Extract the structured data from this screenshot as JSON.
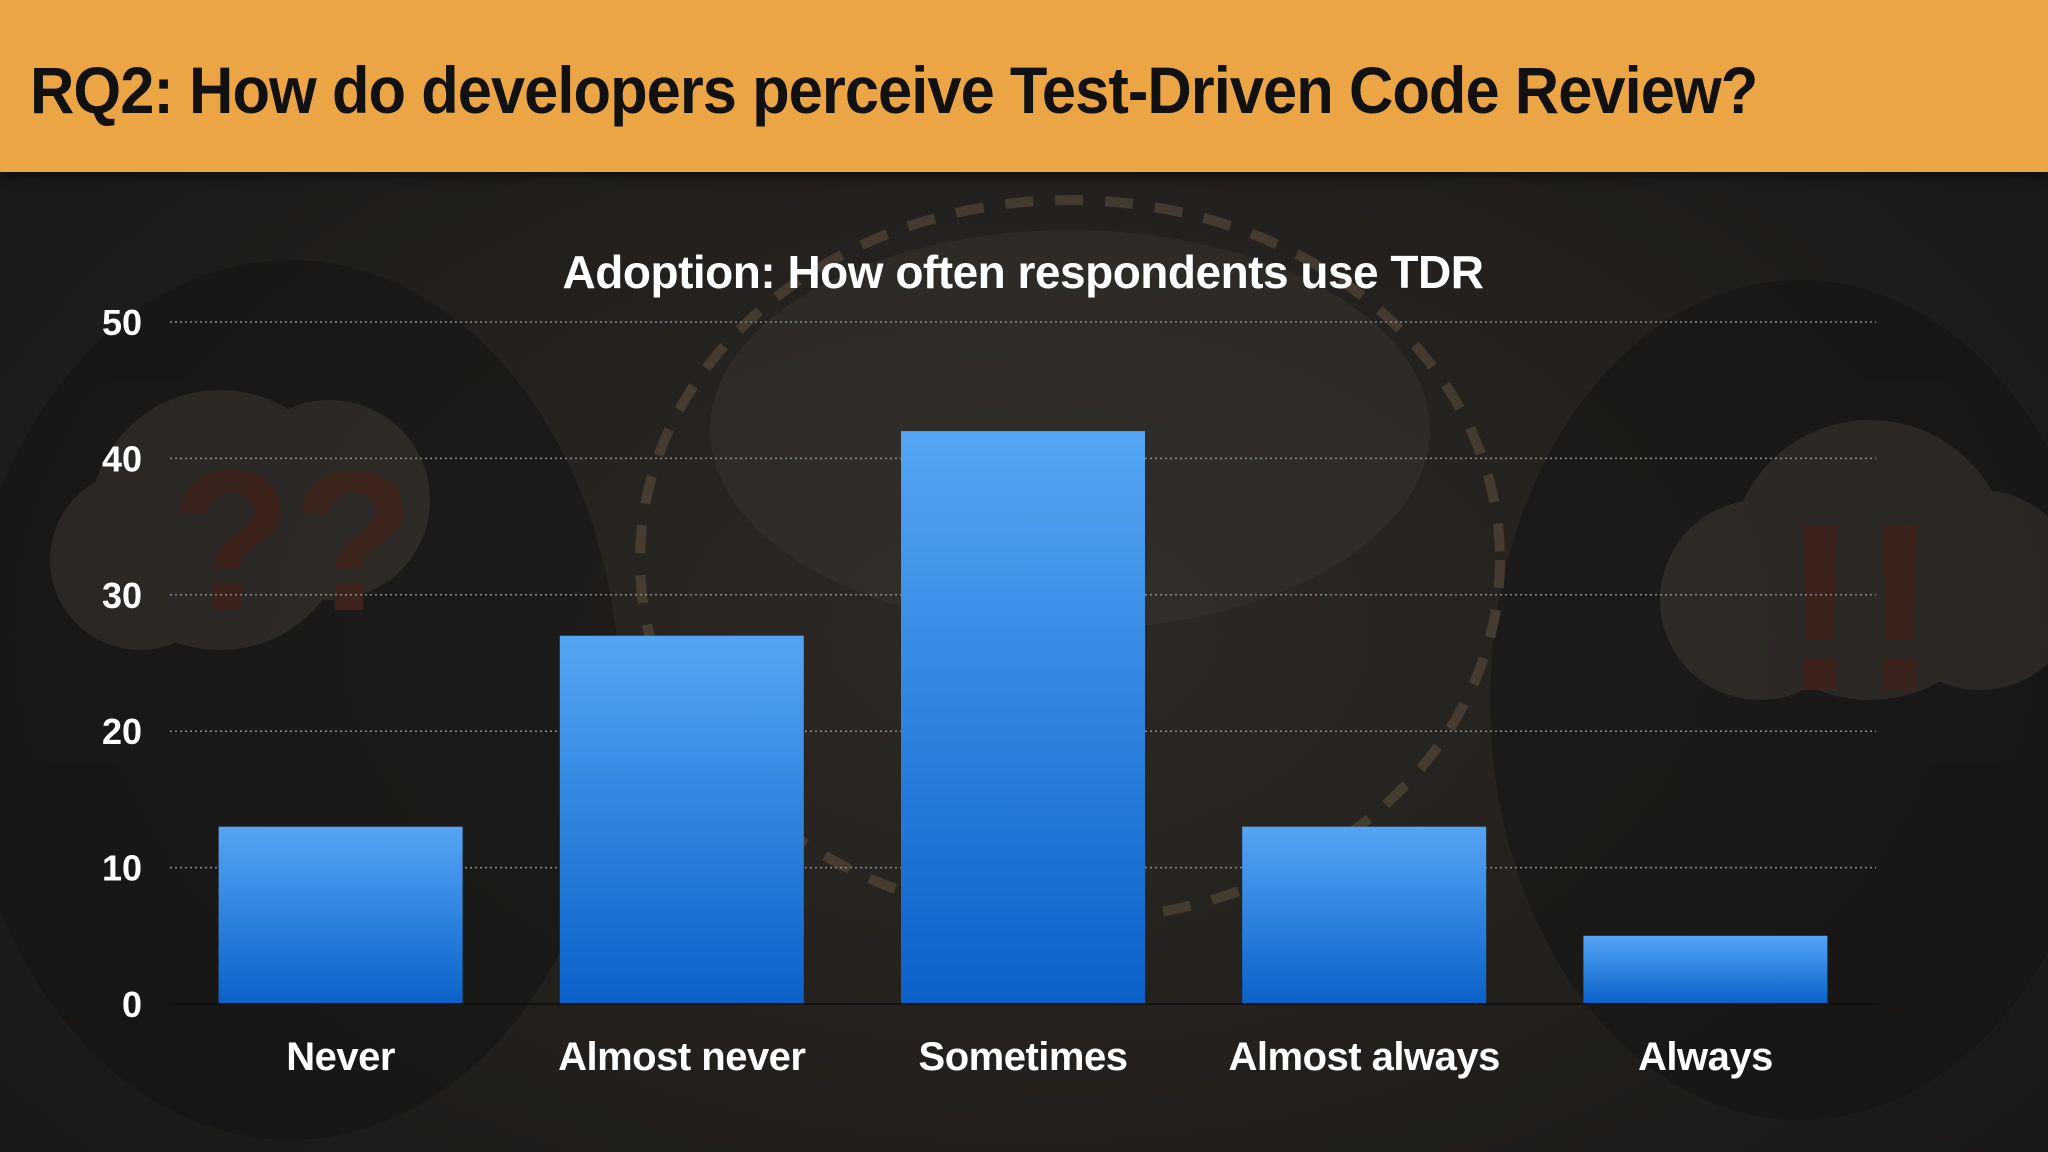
{
  "header": {
    "title": "RQ2: How do developers perceive Test-Driven Code Review?"
  },
  "colors": {
    "header_bg": "#eca545",
    "bar_top": "#55a5f5",
    "bar_bottom": "#0a62c9",
    "text": "#ffffff"
  },
  "chart_data": {
    "type": "bar",
    "title": "Adoption: How often respondents use TDR",
    "xlabel": "",
    "ylabel": "",
    "categories": [
      "Never",
      "Almost never",
      "Sometimes",
      "Almost always",
      "Always"
    ],
    "values": [
      13,
      27,
      42,
      13,
      5
    ],
    "ylim": [
      0,
      50
    ],
    "yticks": [
      0,
      10,
      20,
      30,
      40,
      50
    ],
    "grid": true,
    "legend": "none"
  }
}
